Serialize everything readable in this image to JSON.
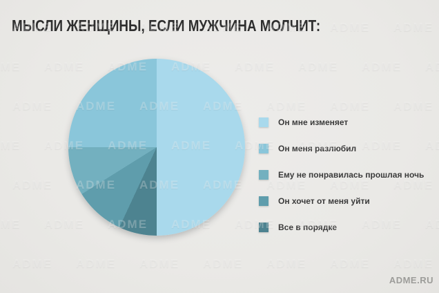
{
  "title": "МЫСЛИ ЖЕНЩИНЫ, ЕСЛИ МУЖЧИНА МОЛЧИТ:",
  "watermark": {
    "tile_text": "ADME"
  },
  "footer": {
    "brand": "ADME.RU"
  },
  "colors": {
    "background": "#eae9e6",
    "title_text": "#2e2e2e",
    "legend_text": "#3b3b3b",
    "brand_text": "#9c9c99"
  },
  "legend": {
    "items": [
      {
        "label": "Он мне изменяет",
        "color": "#a9d9ec"
      },
      {
        "label": "Он меня разлюбил",
        "color": "#8ac6da"
      },
      {
        "label": "Ему не понравилась прошлая ночь",
        "color": "#73b0bf"
      },
      {
        "label": "Он хочет от меня уйти",
        "color": "#5f9dac"
      },
      {
        "label": "Все в порядке",
        "color": "#4d8390"
      }
    ]
  },
  "chart_data": {
    "type": "pie",
    "title": "МЫСЛИ ЖЕНЩИНЫ, ЕСЛИ МУЖЧИНА МОЛЧИТ:",
    "labels": [
      "Он мне изменяет",
      "Он меня разлюбил",
      "Ему не понравилась прошлая ночь",
      "Он хочет от меня уйти",
      "Все в порядке"
    ],
    "values_pct_estimated": [
      50,
      25,
      9,
      9,
      7
    ],
    "colors": [
      "#a9d9ec",
      "#8ac6da",
      "#73b0bf",
      "#5f9dac",
      "#4d8390"
    ],
    "data_labels_shown": false,
    "legend_position": "right",
    "slices_clockwise_from_top": [
      {
        "label": "Он мне изменяет",
        "color": "#a9d9ec",
        "start_deg": 0,
        "end_deg": 180
      },
      {
        "label": "Все в порядке",
        "color": "#4d8390",
        "start_deg": 180,
        "end_deg": 205
      },
      {
        "label": "Он хочет от меня уйти",
        "color": "#5f9dac",
        "start_deg": 205,
        "end_deg": 238
      },
      {
        "label": "Ему не понравилась прошлая ночь",
        "color": "#73b0bf",
        "start_deg": 238,
        "end_deg": 270
      },
      {
        "label": "Он меня разлюбил",
        "color": "#8ac6da",
        "start_deg": 270,
        "end_deg": 360
      }
    ]
  }
}
